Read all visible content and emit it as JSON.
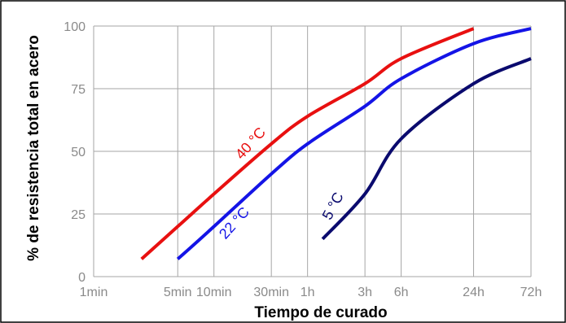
{
  "chart_data": {
    "type": "line",
    "xlabel": "Tiempo de curado",
    "ylabel": "% de resistencia total en acero",
    "x_scale": "log",
    "x_ticks": [
      {
        "label": "1min",
        "minutes": 1
      },
      {
        "label": "5min",
        "minutes": 5
      },
      {
        "label": "10min",
        "minutes": 10
      },
      {
        "label": "30min",
        "minutes": 30
      },
      {
        "label": "1h",
        "minutes": 60
      },
      {
        "label": "3h",
        "minutes": 180
      },
      {
        "label": "6h",
        "minutes": 360
      },
      {
        "label": "24h",
        "minutes": 1440
      },
      {
        "label": "72h",
        "minutes": 4320
      }
    ],
    "y_ticks": [
      0,
      25,
      50,
      75,
      100
    ],
    "ylim": [
      0,
      100
    ],
    "grid": true,
    "series": [
      {
        "name": "40 °C",
        "color": "#e81010",
        "points": [
          {
            "minutes": 2.5,
            "value": 7
          },
          {
            "minutes": 5,
            "value": 20
          },
          {
            "minutes": 10,
            "value": 33
          },
          {
            "minutes": 30,
            "value": 53
          },
          {
            "minutes": 60,
            "value": 64
          },
          {
            "minutes": 180,
            "value": 77
          },
          {
            "minutes": 360,
            "value": 87
          },
          {
            "minutes": 1440,
            "value": 99
          }
        ]
      },
      {
        "name": "22 °C",
        "color": "#1414e6",
        "points": [
          {
            "minutes": 5,
            "value": 7
          },
          {
            "minutes": 10,
            "value": 20
          },
          {
            "minutes": 30,
            "value": 41
          },
          {
            "minutes": 60,
            "value": 53
          },
          {
            "minutes": 180,
            "value": 68
          },
          {
            "minutes": 360,
            "value": 79
          },
          {
            "minutes": 1440,
            "value": 93
          },
          {
            "minutes": 4320,
            "value": 99
          }
        ]
      },
      {
        "name": "5 °C",
        "color": "#0a0a6e",
        "points": [
          {
            "minutes": 80,
            "value": 15
          },
          {
            "minutes": 180,
            "value": 33
          },
          {
            "minutes": 360,
            "value": 55
          },
          {
            "minutes": 1440,
            "value": 77
          },
          {
            "minutes": 4320,
            "value": 87
          }
        ]
      }
    ]
  }
}
